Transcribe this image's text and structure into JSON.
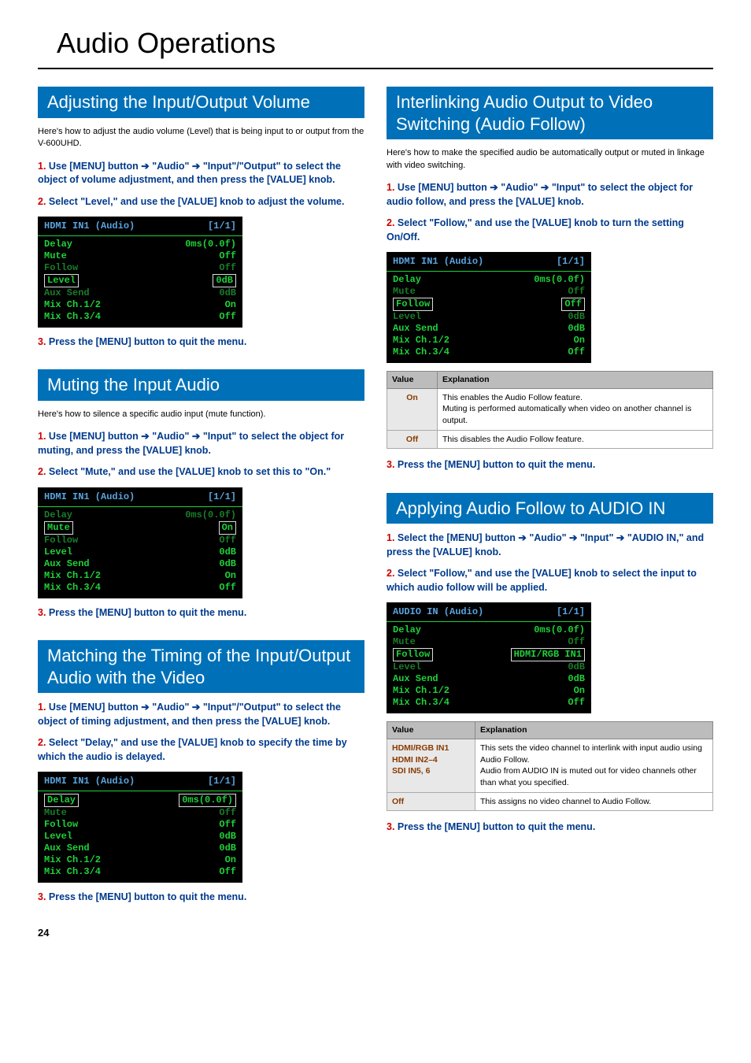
{
  "page": {
    "title": "Audio Operations",
    "number": "24"
  },
  "colors": {
    "accent": "#0071b8",
    "step_num": "#cc0000",
    "step_text": "#003a8c",
    "lcd_bg": "#000000",
    "lcd_green": "#1fd13a",
    "lcd_blue": "#59a4e0",
    "table_header_bg": "#bdbcbc",
    "table_key_bg": "#e8e8e8",
    "table_key_color": "#8a3a00"
  },
  "left": {
    "s1": {
      "heading": "Adjusting the Input/Output Volume",
      "intro": "Here's how to adjust the audio volume (Level) that is being input to or output from the V-600UHD.",
      "steps": {
        "1": "Use [MENU] button ➔ \"Audio\" ➔ \"Input\"/\"Output\" to select the object of volume adjustment, and then press the [VALUE] knob.",
        "2": "Select \"Level,\" and use the [VALUE] knob to adjust the volume.",
        "3": "Press the [MENU] button to quit the menu."
      },
      "lcd": {
        "title": "HDMI IN1 (Audio)",
        "page": "[1/1]",
        "rows": [
          {
            "l": "Delay",
            "r": "0ms(0.0f)"
          },
          {
            "l": "Mute",
            "r": "Off"
          },
          {
            "l": "Follow",
            "r": "Off",
            "dim": true
          }
        ],
        "hl": {
          "l": "Level",
          "r": "0dB"
        },
        "rows2": [
          {
            "l": "Aux Send",
            "r": "0dB",
            "dim": true
          },
          {
            "l": "Mix Ch.1/2",
            "r": "On"
          },
          {
            "l": "Mix Ch.3/4",
            "r": "Off"
          }
        ]
      }
    },
    "s2": {
      "heading": "Muting the Input Audio",
      "intro": "Here's how to silence a specific audio input (mute function).",
      "steps": {
        "1": "Use [MENU] button ➔  \"Audio\" ➔ \"Input\" to select the object for muting, and press the [VALUE] knob.",
        "2": "Select \"Mute,\" and use the [VALUE] knob to set this to \"On.\"",
        "3": "Press the [MENU] button to quit the menu."
      },
      "lcd": {
        "title": "HDMI IN1 (Audio)",
        "page": "[1/1]",
        "rows": [
          {
            "l": "Delay",
            "r": "0ms(0.0f)",
            "dim": true
          }
        ],
        "hl": {
          "l": "Mute",
          "r": "On"
        },
        "rows2": [
          {
            "l": "Follow",
            "r": "Off",
            "dim": true
          },
          {
            "l": "Level",
            "r": "0dB"
          },
          {
            "l": "Aux Send",
            "r": "0dB"
          },
          {
            "l": "Mix Ch.1/2",
            "r": "On"
          },
          {
            "l": "Mix Ch.3/4",
            "r": "Off"
          }
        ]
      }
    },
    "s3": {
      "heading": "Matching the Timing of the Input/Output Audio with the Video",
      "steps": {
        "1": "Use [MENU] button ➔ \"Audio\" ➔ \"Input\"/\"Output\" to select the object of timing adjustment, and then press the [VALUE] knob.",
        "2": "Select \"Delay,\" and use the [VALUE] knob to specify the time by which the audio is delayed.",
        "3": "Press the [MENU] button to quit the menu."
      },
      "lcd": {
        "title": "HDMI IN1 (Audio)",
        "page": "[1/1]",
        "hl": {
          "l": "Delay",
          "r": "0ms(0.0f)"
        },
        "rows2": [
          {
            "l": "Mute",
            "r": "Off",
            "dim": true
          },
          {
            "l": "Follow",
            "r": "Off"
          },
          {
            "l": "Level",
            "r": "0dB"
          },
          {
            "l": "Aux Send",
            "r": "0dB"
          },
          {
            "l": "Mix Ch.1/2",
            "r": "On"
          },
          {
            "l": "Mix Ch.3/4",
            "r": "Off"
          }
        ]
      }
    }
  },
  "right": {
    "s1": {
      "heading": "Interlinking Audio Output to Video Switching (Audio Follow)",
      "intro": "Here's how to make the specified audio be automatically output or muted in linkage with video switching.",
      "steps": {
        "1": "Use [MENU] button ➔ \"Audio\" ➔ \"Input\" to select the object for audio follow, and press the [VALUE] knob.",
        "2": "Select \"Follow,\" and use the [VALUE] knob to turn the setting On/Off.",
        "3": "Press the [MENU] button to quit the menu."
      },
      "lcd": {
        "title": "HDMI IN1 (Audio)",
        "page": "[1/1]",
        "rows": [
          {
            "l": "Delay",
            "r": "0ms(0.0f)"
          },
          {
            "l": "Mute",
            "r": "Off",
            "dim": true
          }
        ],
        "hl": {
          "l": "Follow",
          "r": "Off"
        },
        "rows2": [
          {
            "l": "Level",
            "r": "0dB",
            "dim": true
          },
          {
            "l": "Aux Send",
            "r": "0dB"
          },
          {
            "l": "Mix Ch.1/2",
            "r": "On"
          },
          {
            "l": "Mix Ch.3/4",
            "r": "Off"
          }
        ]
      },
      "table": {
        "headers": [
          "Value",
          "Explanation"
        ],
        "rows": [
          {
            "k": "On",
            "v": "This enables the Audio Follow feature.\nMuting is performed automatically when video on another channel is output."
          },
          {
            "k": "Off",
            "v": "This disables the Audio Follow feature."
          }
        ]
      }
    },
    "s2": {
      "heading": "Applying Audio Follow to AUDIO IN",
      "steps": {
        "1": "Select the [MENU] button ➔ \"Audio\" ➔ \"Input\" ➔ \"AUDIO IN,\" and press the [VALUE] knob.",
        "2": "Select \"Follow,\" and use the [VALUE] knob to select the input to which audio follow will be applied.",
        "3": "Press the [MENU] button to quit the menu."
      },
      "lcd": {
        "title": "AUDIO IN (Audio)",
        "page": "[1/1]",
        "rows": [
          {
            "l": "Delay",
            "r": "0ms(0.0f)"
          },
          {
            "l": "Mute",
            "r": "Off",
            "dim": true
          }
        ],
        "hl": {
          "l": "Follow",
          "r": "HDMI/RGB IN1"
        },
        "rows2": [
          {
            "l": "Level",
            "r": "0dB",
            "dim": true
          },
          {
            "l": "Aux Send",
            "r": "0dB"
          },
          {
            "l": "Mix Ch.1/2",
            "r": "On"
          },
          {
            "l": "Mix Ch.3/4",
            "r": "Off"
          }
        ]
      },
      "table": {
        "headers": [
          "Value",
          "Explanation"
        ],
        "rows": [
          {
            "k": "HDMI/RGB IN1\nHDMI IN2–4\nSDI IN5, 6",
            "v": "This sets the video channel to interlink with input audio using Audio Follow.\nAudio from AUDIO IN is muted out for video channels other than what you specified."
          },
          {
            "k": "Off",
            "v": "This assigns no video channel to Audio Follow."
          }
        ]
      }
    }
  }
}
